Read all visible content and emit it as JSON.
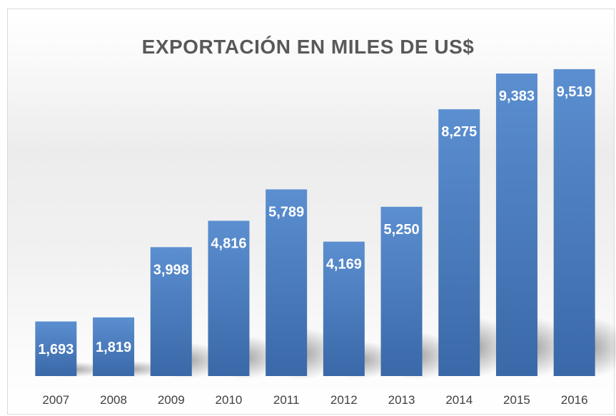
{
  "chart_data": {
    "type": "bar",
    "title": "EXPORTACIÓN EN MILES DE US$",
    "xlabel": "",
    "ylabel": "",
    "categories": [
      "2007",
      "2008",
      "2009",
      "2010",
      "2011",
      "2012",
      "2013",
      "2014",
      "2015",
      "2016"
    ],
    "values": [
      1693,
      1819,
      3998,
      4816,
      5789,
      4169,
      5250,
      8275,
      9383,
      9519
    ],
    "value_labels": [
      "1,693",
      "1,819",
      "3,998",
      "4,816",
      "5,789",
      "4,169",
      "5,250",
      "8,275",
      "9,383",
      "9,519"
    ],
    "ylim": [
      0,
      11000
    ],
    "grid": false,
    "legend": "none",
    "colors": {
      "bar_top": "#5b8fd0",
      "bar_bottom": "#3a68a8",
      "title": "#595959",
      "tick": "#404040",
      "label": "#ffffff"
    }
  }
}
